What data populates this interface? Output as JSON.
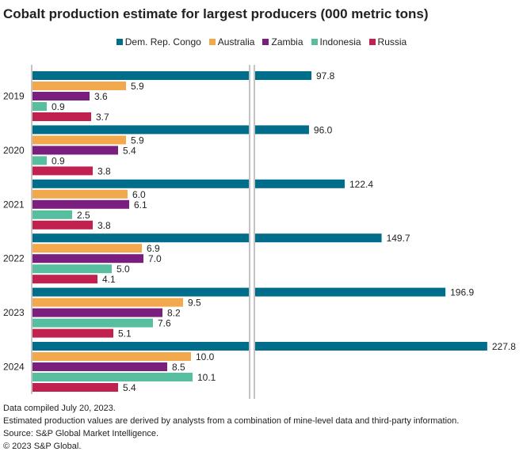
{
  "chart_data": {
    "type": "bar",
    "orientation": "horizontal",
    "title": "Cobalt production estimate for largest producers (000 metric tons)",
    "categories": [
      "2019",
      "2020",
      "2021",
      "2022",
      "2023",
      "2024"
    ],
    "series": [
      {
        "name": "Dem. Rep. Congo",
        "color": "#006e8a",
        "values": [
          97.8,
          96.0,
          122.4,
          149.7,
          196.9,
          227.8
        ]
      },
      {
        "name": "Australia",
        "color": "#f2a84c",
        "values": [
          5.9,
          5.9,
          6.0,
          6.9,
          9.5,
          10.0
        ]
      },
      {
        "name": "Zambia",
        "color": "#7b1f7e",
        "values": [
          3.6,
          5.4,
          6.1,
          7.0,
          8.2,
          8.5
        ]
      },
      {
        "name": "Indonesia",
        "color": "#57bfa0",
        "values": [
          0.9,
          0.9,
          2.5,
          5.0,
          7.6,
          10.1
        ]
      },
      {
        "name": "Russia",
        "color": "#c0214f",
        "values": [
          3.7,
          3.8,
          3.8,
          4.1,
          5.1,
          5.4
        ]
      }
    ],
    "axis_break": true,
    "legend_position": "top",
    "grid": false,
    "value_labels": true
  },
  "notes": [
    "Data compiled July 20, 2023.",
    "Estimated production values are derived by analysts from a combination of mine-level data and third-party information.",
    "Source: S&P Global Market Intelligence.",
    "© 2023 S&P Global."
  ]
}
